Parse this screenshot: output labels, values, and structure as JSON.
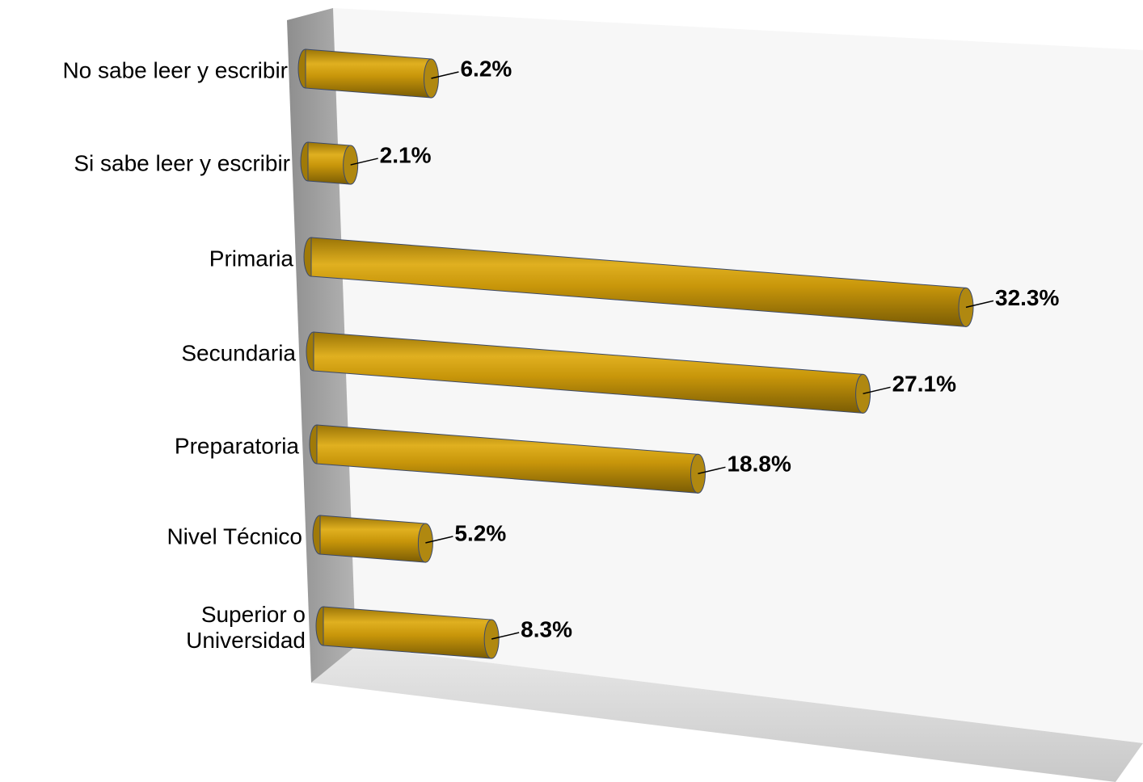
{
  "chart_data": {
    "type": "bar",
    "orientation": "horizontal",
    "categories": [
      "No sabe leer y escribir",
      "Si sabe leer y escribir",
      "Primaria",
      "Secundaria",
      "Preparatoria",
      "Nivel Técnico",
      "Superior o\nUniversidad"
    ],
    "values": [
      6.2,
      2.1,
      32.3,
      27.1,
      18.8,
      5.2,
      8.3
    ],
    "value_labels": [
      "6.2%",
      "2.1%",
      "32.3%",
      "27.1%",
      "18.8%",
      "5.2%",
      "8.3%"
    ],
    "color": "#c8960a"
  }
}
